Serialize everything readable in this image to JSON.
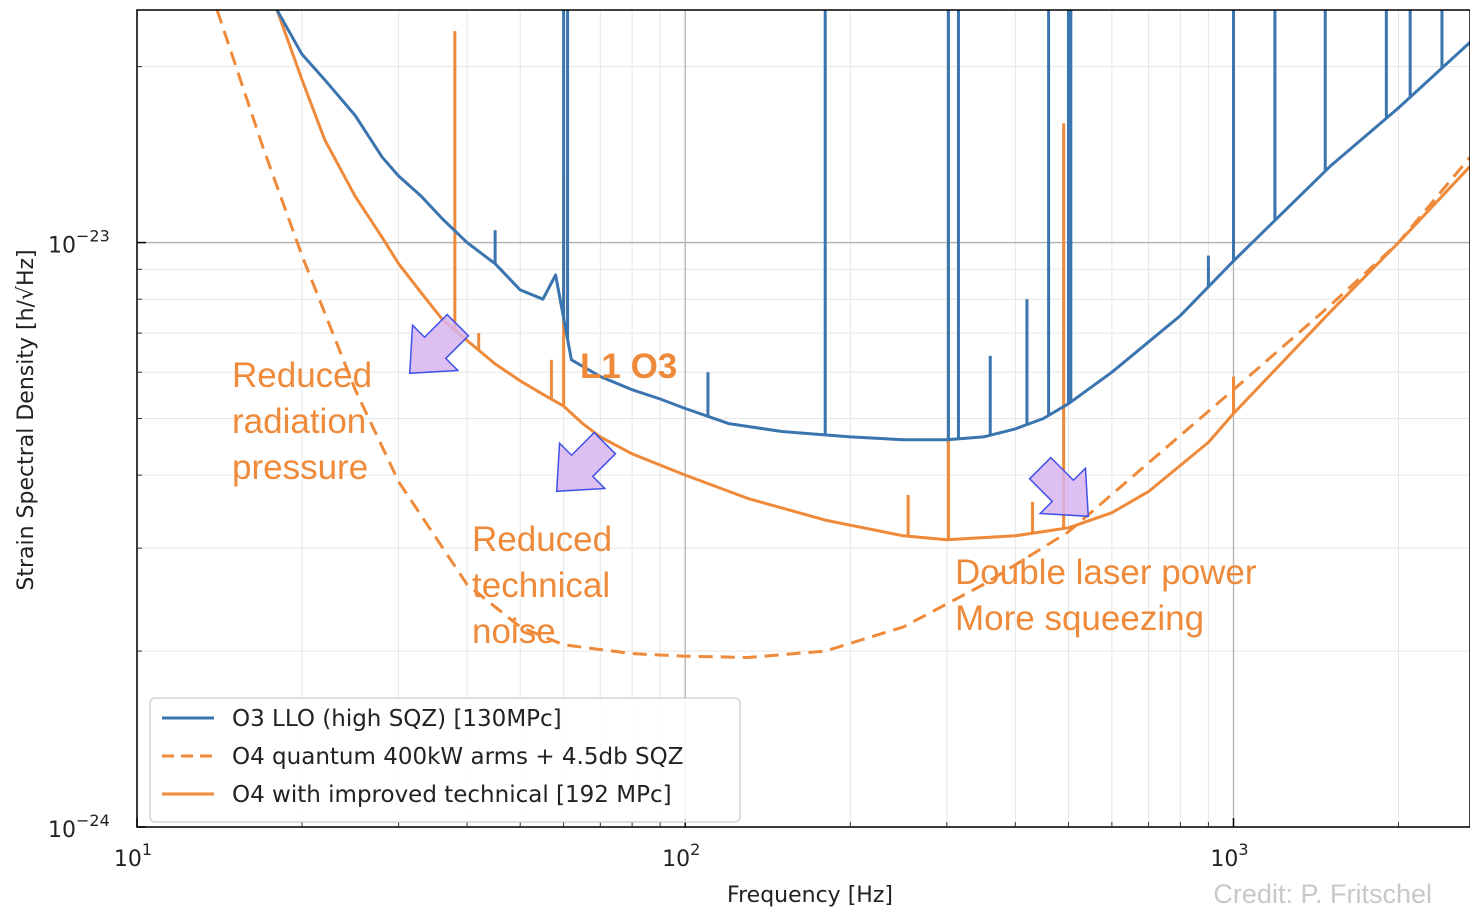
{
  "chart_data": {
    "type": "line",
    "title": "",
    "xlabel": "Frequency [Hz]",
    "ylabel": "Strain Spectral Density [h/√Hz]",
    "x_scale": "log",
    "y_scale": "log",
    "xlim": [
      10,
      2700
    ],
    "ylim": [
      1e-24,
      2.5e-23
    ],
    "grid": true,
    "legend_position": "lower-left",
    "x_ticks": [
      {
        "value": 10,
        "base": "10",
        "exp": "1"
      },
      {
        "value": 100,
        "base": "10",
        "exp": "2"
      },
      {
        "value": 1000,
        "base": "10",
        "exp": "3"
      }
    ],
    "y_ticks": [
      {
        "value": 1e-24,
        "base": "10",
        "exp": "−24"
      },
      {
        "value": 1e-23,
        "base": "10",
        "exp": "−23"
      }
    ],
    "series": [
      {
        "name": "O3 LLO (high SQZ) [130MPc]",
        "color": "#3b75af",
        "style": "solid",
        "x": [
          18,
          20,
          22,
          25,
          28,
          30,
          33,
          36,
          40,
          45,
          50,
          55,
          58,
          62,
          70,
          80,
          90,
          100,
          120,
          150,
          200,
          250,
          300,
          350,
          400,
          450,
          500,
          600,
          800,
          1000,
          1200,
          1500,
          2000,
          2700
        ],
        "y": [
          2.5e-23,
          2.1e-23,
          1.9e-23,
          1.65e-23,
          1.4e-23,
          1.3e-23,
          1.2e-23,
          1.1e-23,
          1e-23,
          9.2e-24,
          8.3e-24,
          8e-24,
          8.8e-24,
          6.3e-24,
          5.9e-24,
          5.6e-24,
          5.4e-24,
          5.2e-24,
          4.9e-24,
          4.75e-24,
          4.65e-24,
          4.6e-24,
          4.6e-24,
          4.65e-24,
          4.8e-24,
          5e-24,
          5.3e-24,
          6e-24,
          7.5e-24,
          9.3e-24,
          1.1e-23,
          1.35e-23,
          1.7e-23,
          2.2e-23
        ],
        "lines": [
          {
            "x": 60,
            "y": 2.5e-23
          },
          {
            "x": 61,
            "y": 2.5e-23
          },
          {
            "x": 180,
            "y": 2.5e-23
          },
          {
            "x": 302,
            "y": 2.5e-23
          },
          {
            "x": 315,
            "y": 2.5e-23
          },
          {
            "x": 460,
            "y": 2.5e-23
          },
          {
            "x": 500,
            "y": 2.5e-23
          },
          {
            "x": 505,
            "y": 2.5e-23
          },
          {
            "x": 1000,
            "y": 2.5e-23
          },
          {
            "x": 1190,
            "y": 2.5e-23
          },
          {
            "x": 1470,
            "y": 2.5e-23
          },
          {
            "x": 1900,
            "y": 2.5e-23
          },
          {
            "x": 2100,
            "y": 2.5e-23
          },
          {
            "x": 2400,
            "y": 2.5e-23
          },
          {
            "x": 110,
            "y": 6e-24
          },
          {
            "x": 45,
            "y": 1.05e-23
          },
          {
            "x": 360,
            "y": 6.4e-24
          },
          {
            "x": 420,
            "y": 8e-24
          },
          {
            "x": 900,
            "y": 9.5e-24
          }
        ]
      },
      {
        "name": "O4 quantum 400kW arms + 4.5db SQZ",
        "color": "#ee8a3a",
        "style": "dashed",
        "x": [
          14,
          17,
          20,
          25,
          30,
          40,
          50,
          60,
          80,
          100,
          130,
          180,
          250,
          350,
          500,
          700,
          1000,
          1500,
          2000,
          2700
        ],
        "y": [
          2.5e-23,
          1.45e-23,
          9.5e-24,
          5.6e-24,
          3.9e-24,
          2.6e-24,
          2.2e-24,
          2.05e-24,
          1.98e-24,
          1.96e-24,
          1.95e-24,
          2e-24,
          2.2e-24,
          2.6e-24,
          3.2e-24,
          4.2e-24,
          5.6e-24,
          7.8e-24,
          1e-23,
          1.4e-23
        ]
      },
      {
        "name": "O4 with improved technical [192 MPc]",
        "color": "#ee8a3a",
        "style": "solid",
        "x": [
          18,
          20,
          22,
          25,
          28,
          30,
          33,
          36,
          40,
          45,
          50,
          55,
          60,
          65,
          70,
          80,
          100,
          130,
          180,
          250,
          300,
          400,
          500,
          600,
          700,
          900,
          1000,
          1200,
          1500,
          2000,
          2700
        ],
        "y": [
          2.5e-23,
          1.9e-23,
          1.5e-23,
          1.2e-23,
          1.02e-23,
          9.2e-24,
          8.2e-24,
          7.4e-24,
          6.8e-24,
          6.2e-24,
          5.8e-24,
          5.5e-24,
          5.25e-24,
          4.9e-24,
          4.65e-24,
          4.35e-24,
          4e-24,
          3.65e-24,
          3.35e-24,
          3.15e-24,
          3.1e-24,
          3.15e-24,
          3.25e-24,
          3.45e-24,
          3.75e-24,
          4.55e-24,
          5.1e-24,
          6.1e-24,
          7.6e-24,
          1e-23,
          1.35e-23
        ],
        "lines": [
          {
            "x": 38,
            "y": 2.3e-23
          },
          {
            "x": 42,
            "y": 7e-24
          },
          {
            "x": 57,
            "y": 6.3e-24
          },
          {
            "x": 60,
            "y": 1.3e-23
          },
          {
            "x": 255,
            "y": 3.7e-24
          },
          {
            "x": 302,
            "y": 2.5e-23
          },
          {
            "x": 430,
            "y": 3.6e-24
          },
          {
            "x": 490,
            "y": 1.6e-23
          },
          {
            "x": 1000,
            "y": 5.9e-24
          }
        ]
      }
    ],
    "annotations": [
      {
        "lines": [
          "Reduced",
          "radiation",
          "pressure"
        ]
      },
      {
        "lines": [
          "Reduced",
          "technical",
          "noise"
        ]
      },
      {
        "lines": [
          "Double laser power",
          "More squeezing"
        ]
      },
      {
        "lines": [
          "L1 O3"
        ]
      }
    ]
  },
  "credit": "Credit: P. Fritschel",
  "colors": {
    "blue": "#3b75af",
    "orange": "#ee8a3a",
    "arrow_fill": "#d8b4f0",
    "arrow_stroke": "#3f51e8"
  }
}
